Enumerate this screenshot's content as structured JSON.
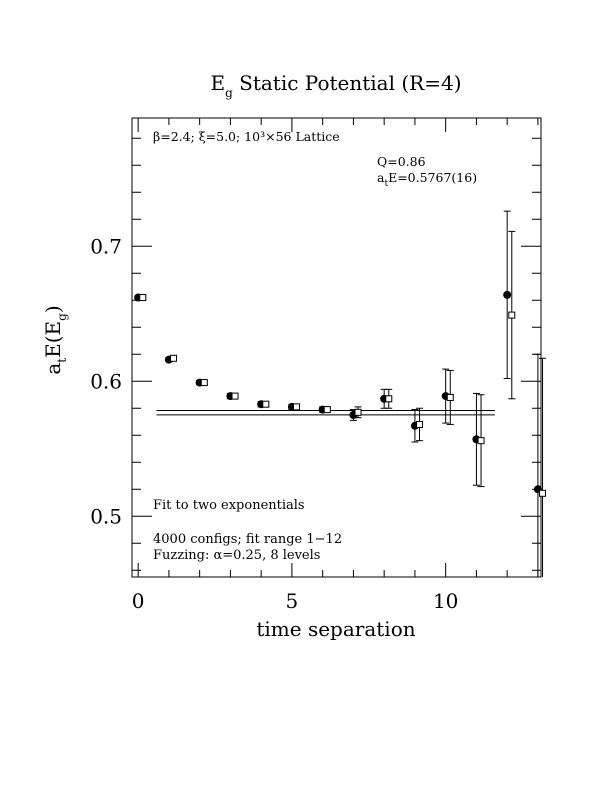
{
  "chart_data": {
    "type": "scatter",
    "title": {
      "main": "E",
      "sub": "g",
      "rest": " Static Potential (R=4)"
    },
    "xlabel": "time separation",
    "ylabel": {
      "pre": "a",
      "sub1": "t",
      "mid": "E(E",
      "sub2": "g",
      "post": ")"
    },
    "xlim": [
      -0.2,
      13.1
    ],
    "ylim": [
      0.455,
      0.795
    ],
    "xticks": [
      0,
      5,
      10
    ],
    "xtick_labels": [
      "0",
      "5",
      "10"
    ],
    "yticks": [
      0.5,
      0.6,
      0.7
    ],
    "ytick_labels": [
      "0.5",
      "0.6",
      "0.7"
    ],
    "xminor_step": 1,
    "yminor_step": 0.02,
    "grid": false,
    "annotations": {
      "lattice": "β=2.4; ξ=5.0; 10³×56 Lattice",
      "q_value": "Q=0.86",
      "energy": {
        "pre": "a",
        "sub": "t",
        "post": "E=0.5767(16)"
      },
      "fit_type": "Fit to two exponentials",
      "configs": "4000 configs; fit range 1−12",
      "fuzzing": "Fuzzing: α=0.25, 8 levels"
    },
    "series": [
      {
        "marker": "filled-circle",
        "points": [
          {
            "x": 0,
            "y": 0.662,
            "err": 0.0015
          },
          {
            "x": 1,
            "y": 0.616,
            "err": 0.0015
          },
          {
            "x": 2,
            "y": 0.599,
            "err": 0.0015
          },
          {
            "x": 3,
            "y": 0.589,
            "err": 0.002
          },
          {
            "x": 4,
            "y": 0.583,
            "err": 0.002
          },
          {
            "x": 5,
            "y": 0.581,
            "err": 0.002
          },
          {
            "x": 6,
            "y": 0.579,
            "err": 0.002
          },
          {
            "x": 7,
            "y": 0.575,
            "err": 0.004
          },
          {
            "x": 8,
            "y": 0.587,
            "err": 0.007
          },
          {
            "x": 9,
            "y": 0.567,
            "err": 0.012
          },
          {
            "x": 10,
            "y": 0.589,
            "err": 0.02
          },
          {
            "x": 11,
            "y": 0.557,
            "err": 0.034
          },
          {
            "x": 12,
            "y": 0.664,
            "err": 0.062
          },
          {
            "x": 13,
            "y": 0.52,
            "err": 0.1
          }
        ]
      },
      {
        "marker": "open-square",
        "points": [
          {
            "x": 0.15,
            "y": 0.662,
            "err": 0.001
          },
          {
            "x": 1.15,
            "y": 0.617,
            "err": 0.001
          },
          {
            "x": 2.15,
            "y": 0.599,
            "err": 0.0012
          },
          {
            "x": 3.15,
            "y": 0.589,
            "err": 0.0015
          },
          {
            "x": 4.15,
            "y": 0.583,
            "err": 0.0015
          },
          {
            "x": 5.15,
            "y": 0.581,
            "err": 0.0015
          },
          {
            "x": 6.15,
            "y": 0.579,
            "err": 0.002
          },
          {
            "x": 7.15,
            "y": 0.577,
            "err": 0.004
          },
          {
            "x": 8.15,
            "y": 0.587,
            "err": 0.007
          },
          {
            "x": 9.15,
            "y": 0.568,
            "err": 0.012
          },
          {
            "x": 10.15,
            "y": 0.588,
            "err": 0.02
          },
          {
            "x": 11.15,
            "y": 0.556,
            "err": 0.034
          },
          {
            "x": 12.15,
            "y": 0.649,
            "err": 0.062
          },
          {
            "x": 13.15,
            "y": 0.517,
            "err": 0.1
          }
        ]
      }
    ],
    "fit": {
      "value": 0.5767,
      "error": 0.0016,
      "x_range": [
        0.6,
        11.6
      ]
    }
  }
}
